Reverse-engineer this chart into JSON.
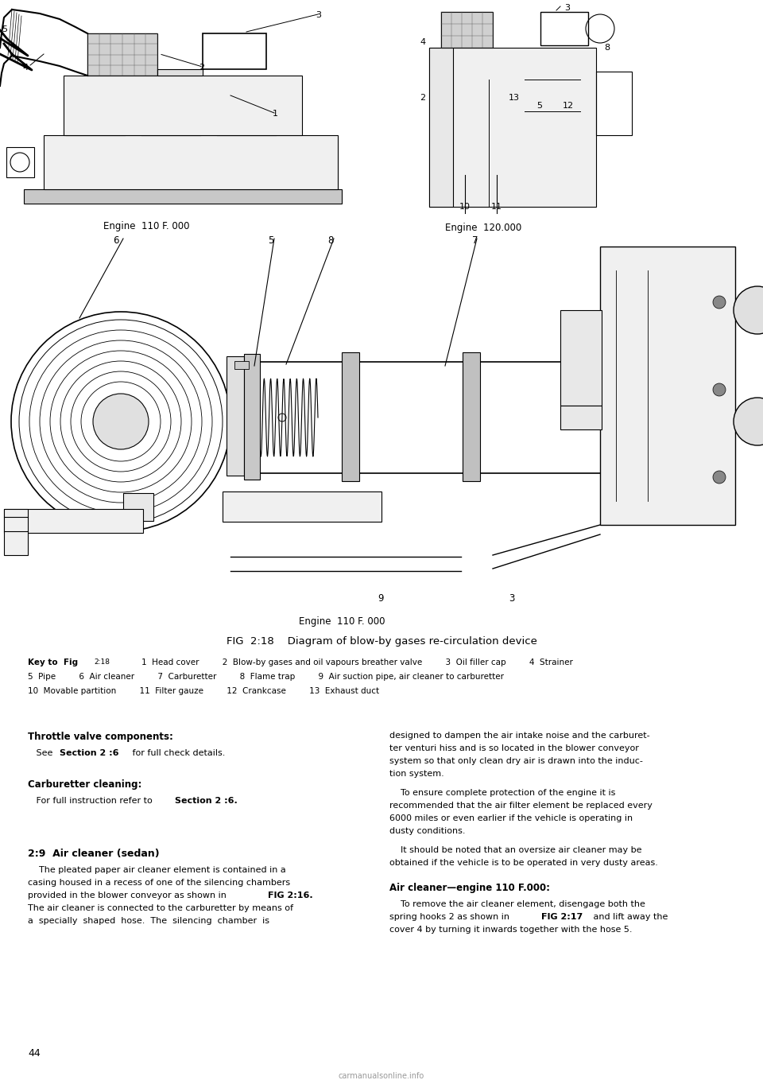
{
  "bg_color": "#ffffff",
  "fig_title": "FIG  2:18    Diagram of blow-by gases re-circulation device",
  "engine1_label": "Engine  110 F. 000",
  "engine2_label": "Engine  120.000",
  "engine3_label": "Engine  110 F. 000",
  "key_line1_a": "Key to  Fig ",
  "key_line1_b": "2:18",
  "key_line1_c": "        1  Head cover         2  Blow-by gases and oil vapours breather valve         3  Oil filler cap         4  Strainer",
  "key_line2": "5  Pipe         6  Air cleaner         7  Carburetter         8  Flame trap         9  Air suction pipe, air cleaner to carburetter",
  "key_line3": "10  Movable partition         11  Filter gauze         12  Crankcase         13  Exhaust duct",
  "throttle_title": "Throttle valve components:",
  "throttle_body": "   See ",
  "throttle_bold": "Section 2 :6",
  "throttle_body2": " for full check details.",
  "carb_title": "Carburetter cleaning:",
  "carb_body": "   For full instruction refer to ",
  "carb_bold": "Section 2 :6.",
  "air_title": "2:9  Air cleaner (sedan)",
  "air_body1": "    The pleated paper air cleaner element is contained in a\ncasing housed in a recess of one of the silencing chambers\nprovided in the blower conveyor as shown in ",
  "air_bold1": "FIG 2:16.",
  "air_body2": "\nThe air cleaner is connected to the carburetter by means of\na  specially  shaped  hose.  The  silencing  chamber  is",
  "right_body1": "designed to dampen the air intake noise and the carburet-\nter venturi hiss and is so located in the blower conveyor\nsystem so that only clean dry air is drawn into the induc-\ntion system.",
  "right_body2": "    To ensure complete protection of the engine it is\nrecommended that the air filter element be replaced every\n6000 miles or even earlier if the vehicle is operating in\ndusty conditions.",
  "right_body3": "    It should be noted that an oversize air cleaner may be\nobtained if the vehicle is to be operated in very dusty areas.",
  "right_title2": "Air cleaner—engine 110 F.000:",
  "right_body4a": "    To remove the air cleaner element, disengage both the\nspring hooks 2 as shown in ",
  "right_bold4": "FIG 2:17",
  "right_body4b": " and lift away the\ncover 4 by turning it inwards together with the hose 5.",
  "page_num": "44",
  "watermark": "carmanualsonline.info"
}
